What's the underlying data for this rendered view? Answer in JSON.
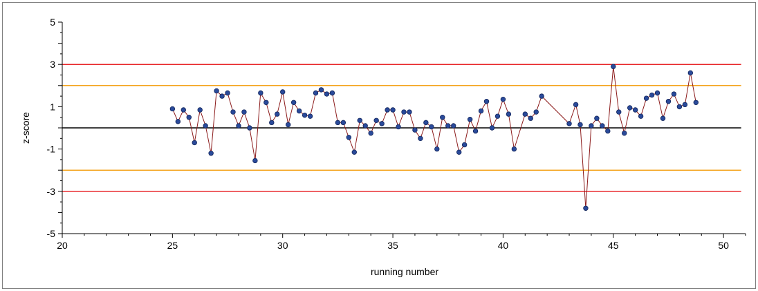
{
  "chart_data": {
    "type": "line",
    "title": "",
    "xlabel": "running number",
    "ylabel": "z-score",
    "xlim": [
      20,
      51
    ],
    "ylim": [
      -5,
      5
    ],
    "xticks": [
      20,
      25,
      30,
      35,
      40,
      45,
      50
    ],
    "yticks": [
      5,
      3,
      1,
      -1,
      -3,
      -5
    ],
    "grid": false,
    "reference_lines": [
      {
        "y": 3,
        "color": "#e8262a"
      },
      {
        "y": 2,
        "color": "#f4a41c"
      },
      {
        "y": 0,
        "color": "#000000"
      },
      {
        "y": -2,
        "color": "#f4a41c"
      },
      {
        "y": -3,
        "color": "#e8262a"
      }
    ],
    "reference_line_xrange": [
      20,
      50.8
    ],
    "series": [
      {
        "line_color": "#8b1a1a",
        "marker_color": "#2a4a9a",
        "points": [
          [
            25.0,
            0.9
          ],
          [
            25.25,
            0.3
          ],
          [
            25.5,
            0.85
          ],
          [
            25.75,
            0.5
          ],
          [
            26.0,
            -0.7
          ],
          [
            26.25,
            0.85
          ],
          [
            26.5,
            0.1
          ],
          [
            26.75,
            -1.2
          ],
          [
            27.0,
            1.75
          ],
          [
            27.25,
            1.5
          ],
          [
            27.5,
            1.65
          ],
          [
            27.75,
            0.75
          ],
          [
            28.0,
            0.1
          ],
          [
            28.25,
            0.75
          ],
          [
            28.5,
            0.0
          ],
          [
            28.75,
            -1.55
          ],
          [
            29.0,
            1.65
          ],
          [
            29.25,
            1.2
          ],
          [
            29.5,
            0.25
          ],
          [
            29.75,
            0.65
          ],
          [
            30.0,
            1.7
          ],
          [
            30.25,
            0.15
          ],
          [
            30.5,
            1.2
          ],
          [
            30.75,
            0.8
          ],
          [
            31.0,
            0.6
          ],
          [
            31.25,
            0.55
          ],
          [
            31.5,
            1.65
          ],
          [
            31.75,
            1.8
          ],
          [
            32.0,
            1.6
          ],
          [
            32.25,
            1.65
          ],
          [
            32.5,
            0.25
          ],
          [
            32.75,
            0.25
          ],
          [
            33.0,
            -0.45
          ],
          [
            33.25,
            -1.15
          ],
          [
            33.5,
            0.35
          ],
          [
            33.75,
            0.1
          ],
          [
            34.0,
            -0.25
          ],
          [
            34.25,
            0.35
          ],
          [
            34.5,
            0.2
          ],
          [
            34.75,
            0.85
          ],
          [
            35.0,
            0.85
          ],
          [
            35.25,
            0.05
          ],
          [
            35.5,
            0.75
          ],
          [
            35.75,
            0.75
          ],
          [
            36.0,
            -0.1
          ],
          [
            36.25,
            -0.5
          ],
          [
            36.5,
            0.25
          ],
          [
            36.75,
            0.05
          ],
          [
            37.0,
            -1.0
          ],
          [
            37.25,
            0.5
          ],
          [
            37.5,
            0.1
          ],
          [
            37.75,
            0.1
          ],
          [
            38.0,
            -1.15
          ],
          [
            38.25,
            -0.8
          ],
          [
            38.5,
            0.4
          ],
          [
            38.75,
            -0.15
          ],
          [
            39.0,
            0.8
          ],
          [
            39.25,
            1.25
          ],
          [
            39.5,
            0.0
          ],
          [
            39.75,
            0.55
          ],
          [
            40.0,
            1.35
          ],
          [
            40.25,
            0.65
          ],
          [
            40.5,
            -1.0
          ],
          [
            41.0,
            0.65
          ],
          [
            41.25,
            0.45
          ],
          [
            41.5,
            0.75
          ],
          [
            41.75,
            1.5
          ],
          [
            43.0,
            0.2
          ],
          [
            43.3,
            1.1
          ],
          [
            43.5,
            0.15
          ],
          [
            43.75,
            -3.8
          ],
          [
            44.0,
            0.1
          ],
          [
            44.25,
            0.45
          ],
          [
            44.5,
            0.1
          ],
          [
            44.75,
            -0.15
          ],
          [
            45.0,
            2.9
          ],
          [
            45.25,
            0.75
          ],
          [
            45.5,
            -0.25
          ],
          [
            45.75,
            0.95
          ],
          [
            46.0,
            0.85
          ],
          [
            46.25,
            0.55
          ],
          [
            46.5,
            1.4
          ],
          [
            46.75,
            1.55
          ],
          [
            47.0,
            1.65
          ],
          [
            47.25,
            0.45
          ],
          [
            47.5,
            1.25
          ],
          [
            47.75,
            1.6
          ],
          [
            48.0,
            1.0
          ],
          [
            48.25,
            1.1
          ],
          [
            48.5,
            2.6
          ],
          [
            48.75,
            1.2
          ]
        ]
      }
    ]
  }
}
